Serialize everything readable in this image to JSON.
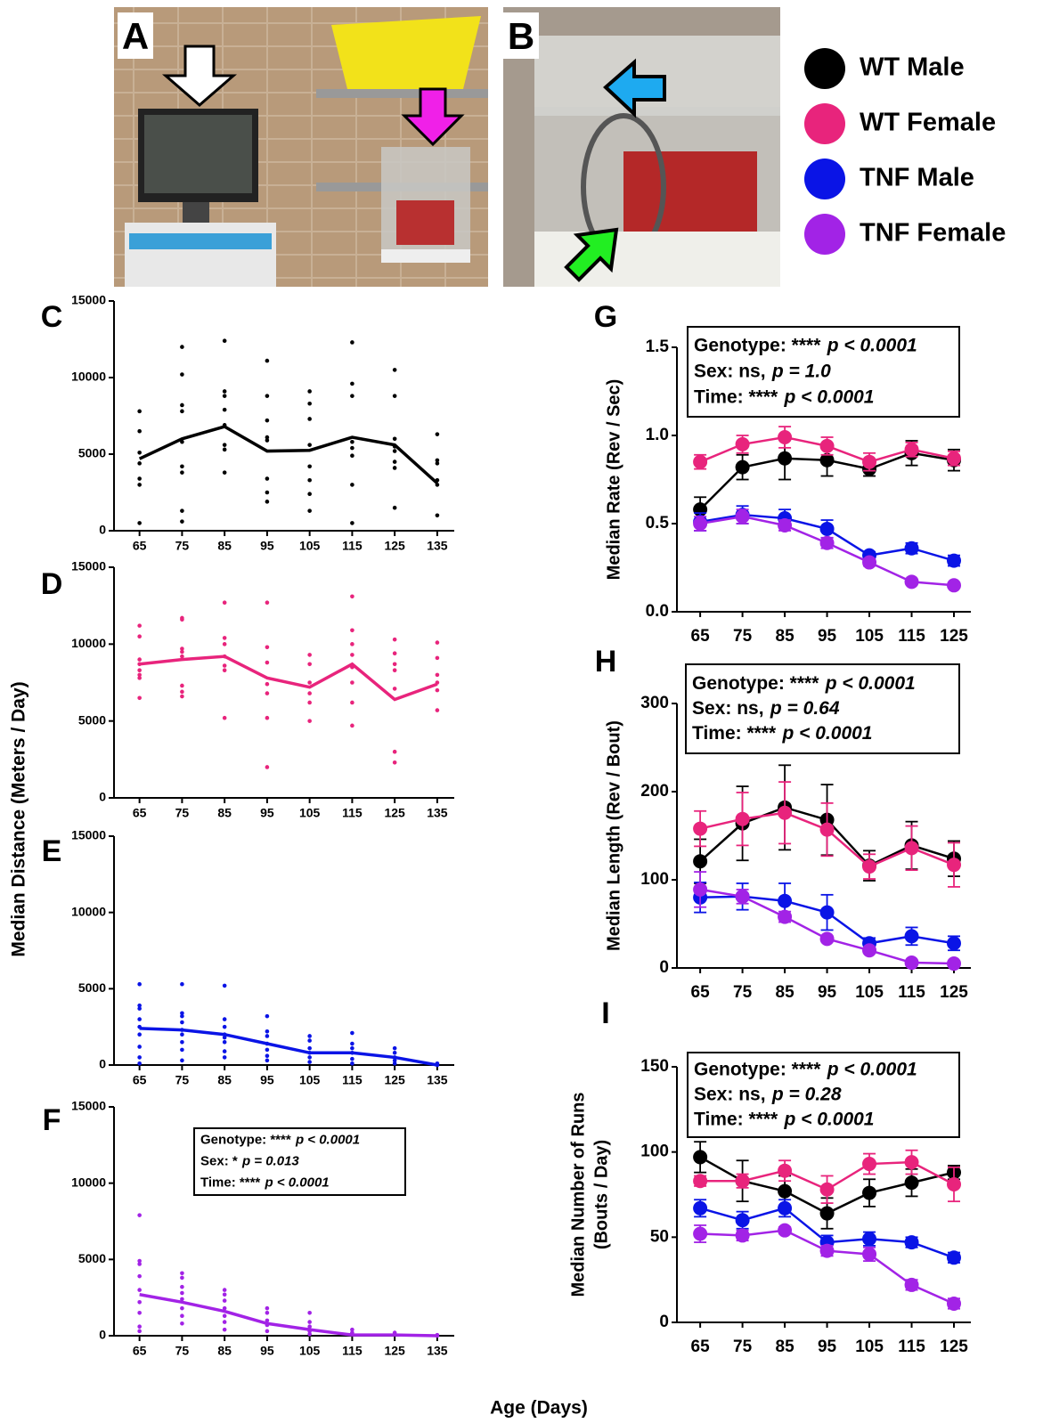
{
  "photos": [
    {
      "label": "A"
    },
    {
      "label": "B"
    }
  ],
  "shared_ylabel": "Median Distance (Meters / Day)",
  "shared_xlabel": "Age (Days)",
  "chart_data": [
    {
      "type": "strip",
      "label": "C",
      "color": "#000000",
      "x": [
        65,
        75,
        85,
        95,
        105,
        115,
        125,
        135
      ],
      "xlim": [
        59,
        139
      ],
      "xticks": [
        65,
        75,
        85,
        95,
        105,
        115,
        125,
        135
      ],
      "ylim": [
        0,
        15000
      ],
      "yticks": [
        0,
        5000,
        10000,
        15000
      ],
      "values": [
        4700,
        6000,
        6800,
        5200,
        5250,
        6100,
        5600,
        3100
      ],
      "points": [
        [
          7800,
          6500,
          5100,
          4400,
          3400,
          3000,
          500
        ],
        [
          12000,
          10200,
          8200,
          7800,
          5800,
          4200,
          3800,
          1300,
          600
        ],
        [
          12400,
          9100,
          8800,
          7900,
          6900,
          5600,
          5300,
          3800
        ],
        [
          11100,
          8800,
          7200,
          6100,
          5900,
          3400,
          2500,
          1900
        ],
        [
          9100,
          8300,
          7300,
          5600,
          4200,
          3300,
          2400,
          1300
        ],
        [
          12300,
          9600,
          8800,
          5800,
          5400,
          4900,
          3000,
          500
        ],
        [
          10500,
          8800,
          6000,
          5500,
          5200,
          4500,
          4100,
          1500
        ],
        [
          6300,
          4600,
          4400,
          3300,
          3000,
          1000
        ]
      ]
    },
    {
      "type": "strip",
      "label": "D",
      "color": "#e8247c",
      "x": [
        65,
        75,
        85,
        95,
        105,
        115,
        125,
        135
      ],
      "xlim": [
        59,
        139
      ],
      "xticks": [
        65,
        75,
        85,
        95,
        105,
        115,
        125,
        135
      ],
      "ylim": [
        0,
        15000
      ],
      "yticks": [
        0,
        5000,
        10000,
        15000
      ],
      "values": [
        8700,
        9000,
        9200,
        7800,
        7200,
        8700,
        6400,
        7400
      ],
      "points": [
        [
          11200,
          10500,
          9000,
          8700,
          8300,
          8000,
          7800,
          6500
        ],
        [
          11700,
          11600,
          9700,
          9500,
          9200,
          7300,
          6900,
          6600
        ],
        [
          12700,
          10400,
          10000,
          9200,
          8600,
          8300,
          5200
        ],
        [
          12700,
          9800,
          8800,
          7400,
          6800,
          5200,
          2000
        ],
        [
          9300,
          8700,
          7500,
          6800,
          6200,
          5000
        ],
        [
          13100,
          10900,
          10000,
          9300,
          8500,
          7500,
          6200,
          4700
        ],
        [
          10300,
          9400,
          8700,
          8300,
          7100,
          3000,
          2300
        ],
        [
          10100,
          9100,
          8000,
          7500,
          7000,
          5700
        ]
      ]
    },
    {
      "type": "strip",
      "label": "E",
      "color": "#0a14e6",
      "x": [
        65,
        75,
        85,
        95,
        105,
        115,
        125,
        135
      ],
      "xlim": [
        59,
        139
      ],
      "xticks": [
        65,
        75,
        85,
        95,
        105,
        115,
        125,
        135
      ],
      "ylim": [
        0,
        15000
      ],
      "yticks": [
        0,
        5000,
        10000,
        15000
      ],
      "values": [
        2400,
        2300,
        2000,
        1400,
        800,
        800,
        500,
        0
      ],
      "points": [
        [
          5300,
          3900,
          3700,
          3000,
          2500,
          2000,
          1200,
          500,
          100
        ],
        [
          5300,
          3400,
          3200,
          2800,
          2300,
          2000,
          1500,
          1000,
          300
        ],
        [
          5200,
          3000,
          2500,
          2000,
          1800,
          1500,
          900,
          500
        ],
        [
          3200,
          2200,
          1900,
          1400,
          1000,
          600,
          300
        ],
        [
          1900,
          1600,
          1100,
          800,
          500,
          200
        ],
        [
          2100,
          1400,
          1100,
          800,
          400,
          100
        ],
        [
          1100,
          800,
          500,
          300,
          100
        ],
        [
          100,
          50,
          0
        ]
      ]
    },
    {
      "type": "strip",
      "label": "F",
      "color": "#a223e6",
      "x": [
        65,
        75,
        85,
        95,
        105,
        115,
        125,
        135
      ],
      "xlim": [
        59,
        139
      ],
      "xticks": [
        65,
        75,
        85,
        95,
        105,
        115,
        125,
        135
      ],
      "ylim": [
        0,
        15000
      ],
      "yticks": [
        0,
        5000,
        10000,
        15000
      ],
      "values": [
        2700,
        2200,
        1600,
        800,
        400,
        50,
        50,
        0
      ],
      "points": [
        [
          7900,
          4900,
          4700,
          3900,
          3000,
          2200,
          1500,
          600,
          300
        ],
        [
          4100,
          3800,
          3200,
          2800,
          2400,
          1800,
          1300,
          800
        ],
        [
          3000,
          2700,
          2300,
          1800,
          1300,
          900,
          400
        ],
        [
          1800,
          1500,
          1000,
          700,
          300
        ],
        [
          1500,
          900,
          600,
          300,
          100
        ],
        [
          400,
          200,
          100
        ],
        [
          200,
          100
        ],
        [
          50,
          0
        ]
      ],
      "stats": [
        {
          "term": "Genotype: ****",
          "p": "p < 0.0001"
        },
        {
          "term": "Sex: *",
          "p": "p = 0.013"
        },
        {
          "term": "Time: ****",
          "p": "p < 0.0001"
        }
      ]
    },
    {
      "type": "line",
      "label": "G",
      "ylabel": [
        "Median Rate (Rev / Sec)"
      ],
      "x": [
        65,
        75,
        85,
        95,
        105,
        115,
        125
      ],
      "xlim": [
        59.5,
        129
      ],
      "xticks": [
        65,
        75,
        85,
        95,
        105,
        115,
        125
      ],
      "ylim": [
        0,
        1.5
      ],
      "yticks": [
        {
          "value": 0,
          "label": "0.0"
        },
        0.5,
        {
          "value": 1,
          "label": "1.0"
        },
        1.5
      ],
      "series": [
        {
          "name": "WT Male",
          "color": "#000000",
          "values": [
            0.58,
            0.82,
            0.87,
            0.86,
            0.81,
            0.9,
            0.86
          ],
          "errors": [
            0.07,
            0.07,
            0.12,
            0.09,
            0.04,
            0.07,
            0.06
          ]
        },
        {
          "name": "WT Female",
          "color": "#e8247c",
          "values": [
            0.85,
            0.95,
            0.99,
            0.94,
            0.85,
            0.92,
            0.87
          ],
          "errors": [
            0.04,
            0.05,
            0.06,
            0.05,
            0.05,
            0.04,
            0.04
          ]
        },
        {
          "name": "TNF Male",
          "color": "#0a14e6",
          "values": [
            0.51,
            0.55,
            0.53,
            0.47,
            0.32,
            0.36,
            0.29
          ],
          "errors": [
            0.05,
            0.05,
            0.05,
            0.05,
            0.02,
            0.03,
            0.03
          ]
        },
        {
          "name": "TNF Female",
          "color": "#a223e6",
          "values": [
            0.5,
            0.54,
            0.49,
            0.39,
            0.28,
            0.17,
            0.15
          ],
          "errors": [
            0.04,
            0.04,
            0.03,
            0.03,
            0.02,
            0.01,
            0.01
          ]
        }
      ],
      "stats": [
        {
          "term": "Genotype: ****",
          "p": "p < 0.0001"
        },
        {
          "term": "Sex: ns,",
          "p": "p = 1.0"
        },
        {
          "term": "Time: ****",
          "p": "p < 0.0001"
        }
      ]
    },
    {
      "type": "line",
      "label": "H",
      "ylabel": [
        "Median Length (Rev / Bout)"
      ],
      "x": [
        65,
        75,
        85,
        95,
        105,
        115,
        125
      ],
      "xlim": [
        59.5,
        129
      ],
      "xticks": [
        65,
        75,
        85,
        95,
        105,
        115,
        125
      ],
      "ylim": [
        0,
        300
      ],
      "yticks": [
        0,
        100,
        200,
        300
      ],
      "series": [
        {
          "color": "#000000",
          "values": [
            121,
            164,
            182,
            168,
            116,
            139,
            124
          ],
          "errors": [
            25,
            42,
            48,
            40,
            17,
            27,
            20
          ]
        },
        {
          "color": "#e8247c",
          "values": [
            158,
            169,
            176,
            157,
            115,
            136,
            117
          ],
          "errors": [
            20,
            30,
            35,
            30,
            14,
            25,
            25
          ]
        },
        {
          "color": "#0a14e6",
          "values": [
            80,
            81,
            76,
            63,
            28,
            36,
            28
          ],
          "errors": [
            17,
            15,
            20,
            20,
            6,
            10,
            8
          ]
        },
        {
          "color": "#a223e6",
          "values": [
            89,
            81,
            58,
            33,
            20,
            6,
            5
          ],
          "errors": [
            20,
            8,
            6,
            3,
            3,
            2,
            1
          ]
        }
      ],
      "stats": [
        {
          "term": "Genotype: ****",
          "p": "p < 0.0001"
        },
        {
          "term": "Sex: ns,",
          "p": "p = 0.64"
        },
        {
          "term": "Time: ****",
          "p": "p < 0.0001"
        }
      ]
    },
    {
      "type": "line",
      "label": "I",
      "ylabel": [
        "Median Number of Runs",
        "(Bouts / Day)"
      ],
      "x": [
        65,
        75,
        85,
        95,
        105,
        115,
        125
      ],
      "xlim": [
        59.5,
        129
      ],
      "xticks": [
        65,
        75,
        85,
        95,
        105,
        115,
        125
      ],
      "ylim": [
        0,
        150
      ],
      "yticks": [
        0,
        50,
        100,
        150
      ],
      "series": [
        {
          "color": "#000000",
          "values": [
            97,
            83,
            77,
            64,
            76,
            82,
            88
          ],
          "errors": [
            9,
            12,
            9,
            9,
            8,
            8,
            4
          ]
        },
        {
          "color": "#e8247c",
          "values": [
            83,
            83,
            89,
            78,
            93,
            94,
            81
          ],
          "errors": [
            3,
            4,
            6,
            8,
            6,
            7,
            10
          ]
        },
        {
          "color": "#0a14e6",
          "values": [
            67,
            60,
            67,
            47,
            49,
            47,
            38
          ],
          "errors": [
            5,
            5,
            5,
            4,
            4,
            3,
            3
          ]
        },
        {
          "color": "#a223e6",
          "values": [
            52,
            51,
            54,
            42,
            40,
            22,
            11
          ],
          "errors": [
            5,
            3,
            2,
            3,
            4,
            3,
            3
          ]
        }
      ],
      "stats": [
        {
          "term": "Genotype: ****",
          "p": "p < 0.0001"
        },
        {
          "term": "Sex: ns,",
          "p": "p = 0.28"
        },
        {
          "term": "Time: ****",
          "p": "p < 0.0001"
        }
      ]
    }
  ]
}
